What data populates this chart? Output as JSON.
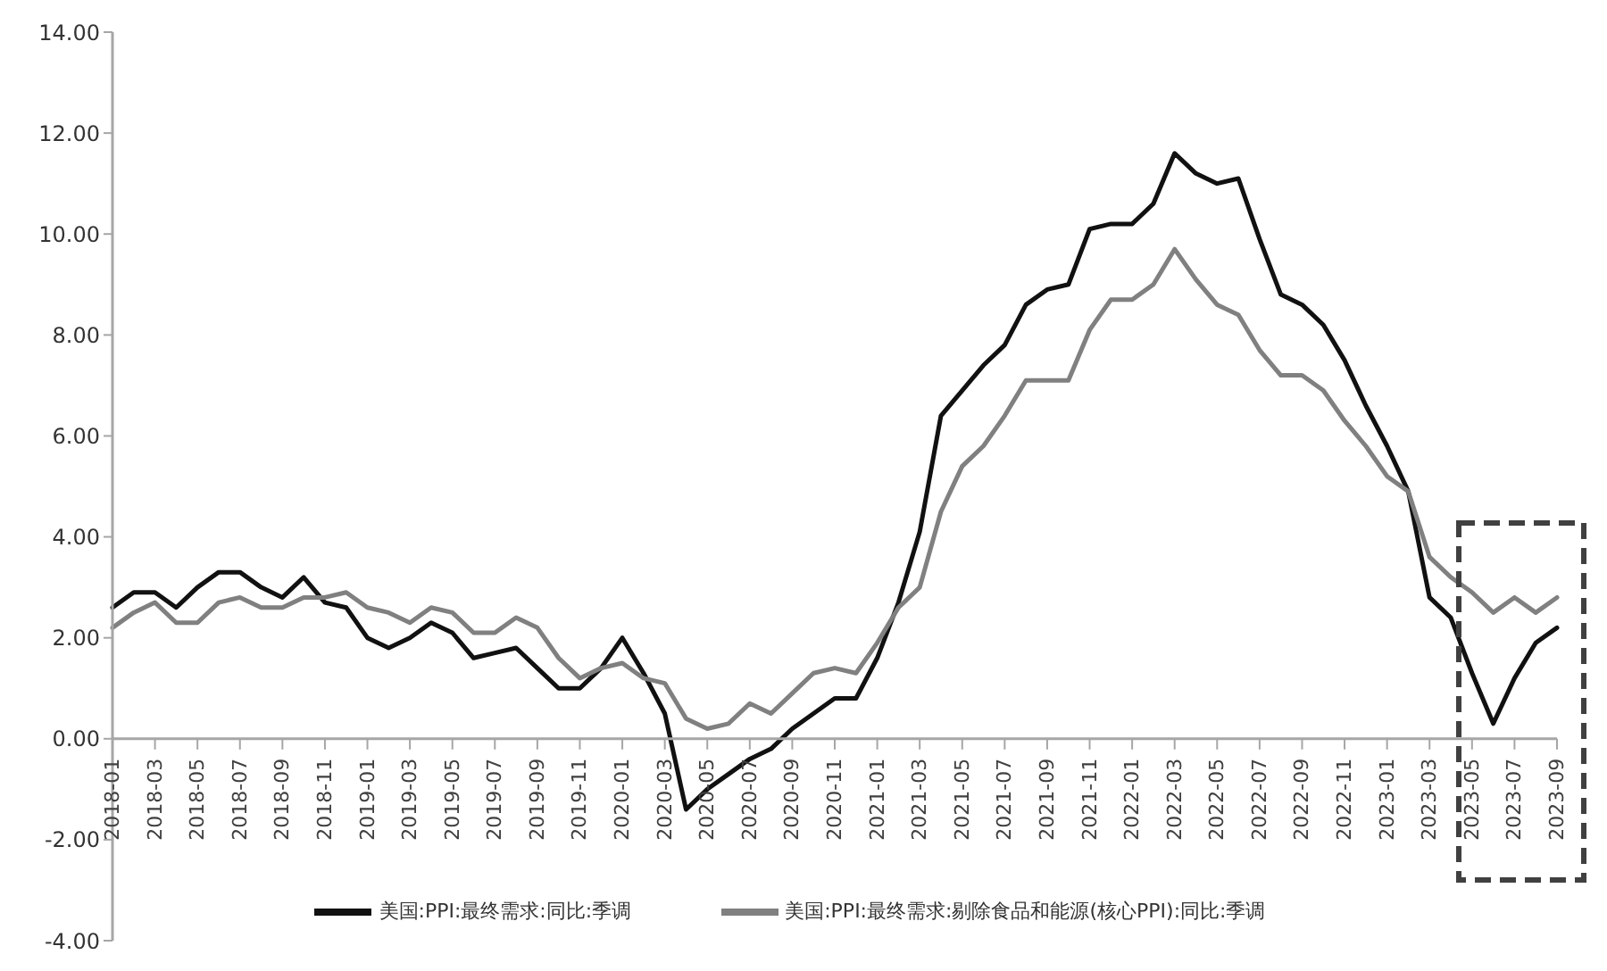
{
  "chart_data": {
    "type": "line",
    "categories": [
      "2018-01",
      null,
      "2018-03",
      null,
      "2018-05",
      null,
      "2018-07",
      null,
      "2018-09",
      null,
      "2018-11",
      null,
      "2019-01",
      null,
      "2019-03",
      null,
      "2019-05",
      null,
      "2019-07",
      null,
      "2019-09",
      null,
      "2019-11",
      null,
      "2020-01",
      null,
      "2020-03",
      null,
      "2020-05",
      null,
      "2020-07",
      null,
      "2020-09",
      null,
      "2020-11",
      null,
      "2021-01",
      null,
      "2021-03",
      null,
      "2021-05",
      null,
      "2021-07",
      null,
      "2021-09",
      null,
      "2021-11",
      null,
      "2022-01",
      null,
      "2022-03",
      null,
      "2022-05",
      null,
      "2022-07",
      null,
      "2022-09",
      null,
      "2022-11",
      null,
      "2023-01",
      null,
      "2023-03",
      null,
      "2023-05",
      null,
      "2023-07",
      null,
      "2023-09"
    ],
    "series": [
      {
        "name": "美国:PPI:最终需求:同比:季调",
        "color": "#111111",
        "values": [
          2.6,
          2.9,
          2.9,
          2.6,
          3.0,
          3.3,
          3.3,
          3.0,
          2.8,
          3.2,
          2.7,
          2.6,
          2.0,
          1.8,
          2.0,
          2.3,
          2.1,
          1.6,
          1.7,
          1.8,
          1.4,
          1.0,
          1.0,
          1.4,
          2.0,
          1.3,
          0.5,
          -1.4,
          -1.0,
          -0.7,
          -0.4,
          -0.2,
          0.2,
          0.5,
          0.8,
          0.8,
          1.6,
          2.7,
          4.1,
          6.4,
          6.9,
          7.4,
          7.8,
          8.6,
          8.9,
          9.0,
          10.1,
          10.2,
          10.2,
          10.6,
          11.6,
          11.2,
          11.0,
          11.1,
          9.9,
          8.8,
          8.6,
          8.2,
          7.5,
          6.6,
          5.8,
          4.9,
          2.8,
          2.4,
          1.3,
          0.3,
          1.2,
          1.9,
          2.2
        ]
      },
      {
        "name": "美国:PPI:最终需求:剔除食品和能源(核心PPI):同比:季调",
        "color": "#808080",
        "values": [
          2.2,
          2.5,
          2.7,
          2.3,
          2.3,
          2.7,
          2.8,
          2.6,
          2.6,
          2.8,
          2.8,
          2.9,
          2.6,
          2.5,
          2.3,
          2.6,
          2.5,
          2.1,
          2.1,
          2.4,
          2.2,
          1.6,
          1.2,
          1.4,
          1.5,
          1.2,
          1.1,
          0.4,
          0.2,
          0.3,
          0.7,
          0.5,
          0.9,
          1.3,
          1.4,
          1.3,
          1.9,
          2.6,
          3.0,
          4.5,
          5.4,
          5.8,
          6.4,
          7.1,
          7.1,
          7.1,
          8.1,
          8.7,
          8.7,
          9.0,
          9.7,
          9.1,
          8.6,
          8.4,
          7.7,
          7.2,
          7.2,
          6.9,
          6.3,
          5.8,
          5.2,
          4.9,
          3.6,
          3.2,
          2.9,
          2.5,
          2.8,
          2.5,
          2.8
        ]
      }
    ],
    "ylim": [
      -4,
      14
    ],
    "yticks": [
      {
        "value": -4,
        "label": "-4.00"
      },
      {
        "value": -2,
        "label": "-2.00"
      },
      {
        "value": 0,
        "label": "0.00"
      },
      {
        "value": 2,
        "label": "2.00"
      },
      {
        "value": 4,
        "label": "4.00"
      },
      {
        "value": 6,
        "label": "6.00"
      },
      {
        "value": 8,
        "label": "8.00"
      },
      {
        "value": 10,
        "label": "10.00"
      },
      {
        "value": 12,
        "label": "12.00"
      },
      {
        "value": 14,
        "label": "14.00"
      }
    ],
    "grid": false,
    "legend": "bottom",
    "marker": "none",
    "line_style": "solid"
  }
}
